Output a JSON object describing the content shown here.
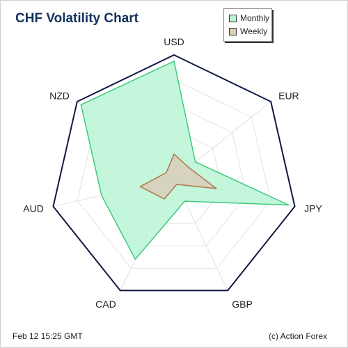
{
  "header": {
    "title": "CHF Volatility Chart"
  },
  "footer": {
    "timestamp": "Feb 12  15:25 GMT",
    "credit": "(c) Action Forex"
  },
  "colors": {
    "monthly_fill": "#b8f5d3",
    "monthly_stroke": "#3fc97e",
    "weekly_fill": "#d9cdb9",
    "weekly_stroke": "#b0764a",
    "outline": "#0f1840",
    "grid": "#e2e2e2",
    "title": "#13315c"
  },
  "chart_data": {
    "type": "radar",
    "categories": [
      "USD",
      "EUR",
      "JPY",
      "GBP",
      "CAD",
      "AUD",
      "NZD"
    ],
    "series": [
      {
        "name": "Monthly",
        "values": [
          0.95,
          0.22,
          0.95,
          0.2,
          0.72,
          0.6,
          0.96
        ]
      },
      {
        "name": "Weekly",
        "values": [
          0.2,
          0.15,
          0.35,
          0.05,
          0.18,
          0.28,
          0.08
        ]
      }
    ],
    "legend": "top-right",
    "grid": true
  }
}
